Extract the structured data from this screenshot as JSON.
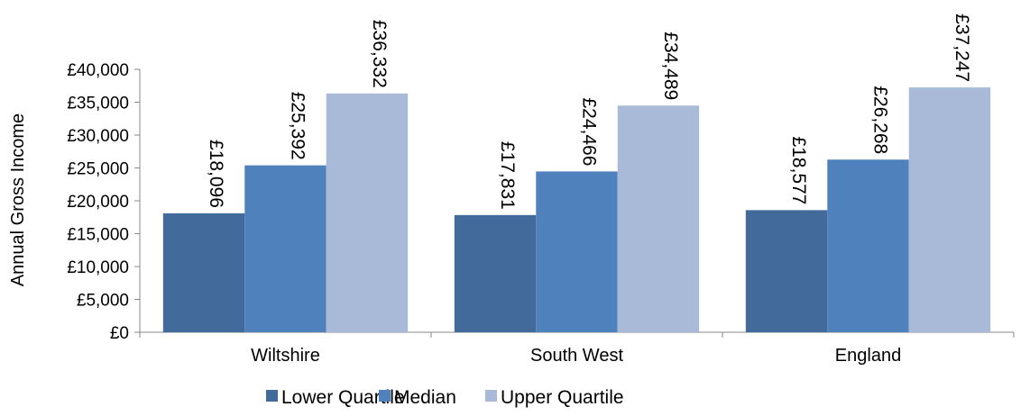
{
  "chart_data": {
    "type": "bar",
    "title": "",
    "xlabel": "",
    "ylabel": "Annual Gross Income",
    "ylim": [
      0,
      40000
    ],
    "ytick_step": 5000,
    "ytick_labels": [
      "£0",
      "£5,000",
      "£10,000",
      "£15,000",
      "£20,000",
      "£25,000",
      "£30,000",
      "£35,000",
      "£40,000"
    ],
    "grid": false,
    "legend_position": "bottom",
    "categories": [
      "Wiltshire",
      "South West",
      "England"
    ],
    "series": [
      {
        "name": "Lower Quartile",
        "color": "#426A9B",
        "values": [
          18096,
          17831,
          18577
        ],
        "labels": [
          "£18,096",
          "£17,831",
          "£18,577"
        ]
      },
      {
        "name": "Median",
        "color": "#4F81BD",
        "values": [
          25392,
          24466,
          26268
        ],
        "labels": [
          "£25,392",
          "£24,466",
          "£26,268"
        ]
      },
      {
        "name": "Upper Quartile",
        "color": "#A9BAD9",
        "values": [
          36332,
          34489,
          37247
        ],
        "labels": [
          "£36,332",
          "£34,489",
          "£37,247"
        ]
      }
    ]
  }
}
